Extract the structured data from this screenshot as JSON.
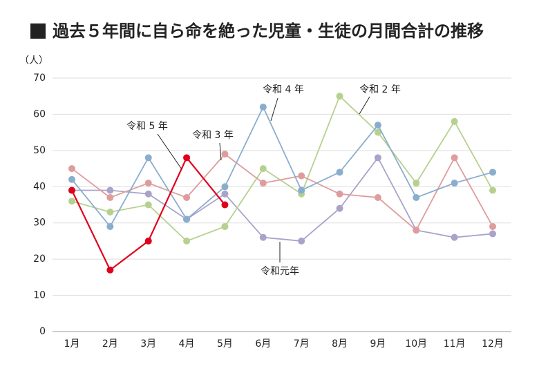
{
  "chart_data": {
    "type": "line",
    "title": "過去５年間に自ら命を絶った児童・生徒の月間合計の推移",
    "y_label": "（人）",
    "categories": [
      "1月",
      "2月",
      "3月",
      "4月",
      "5月",
      "6月",
      "7月",
      "8月",
      "9月",
      "10月",
      "11月",
      "12月"
    ],
    "series": [
      {
        "name": "令和元年",
        "color": "#aaa3c9",
        "values": [
          39,
          39,
          38,
          31,
          38,
          26,
          25,
          34,
          48,
          28,
          26,
          27
        ]
      },
      {
        "name": "令和 2 年",
        "color": "#b6d18f",
        "values": [
          36,
          33,
          35,
          25,
          29,
          45,
          38,
          65,
          55,
          41,
          58,
          39
        ]
      },
      {
        "name": "令和 3 年",
        "color": "#df9c9c",
        "values": [
          45,
          37,
          41,
          37,
          49,
          41,
          43,
          38,
          37,
          28,
          48,
          29
        ]
      },
      {
        "name": "令和 4 年",
        "color": "#8badcd",
        "values": [
          42,
          29,
          48,
          31,
          40,
          62,
          39,
          44,
          57,
          37,
          41,
          44
        ]
      },
      {
        "name": "令和 5 年",
        "color": "#e0001b",
        "values": [
          39,
          17,
          25,
          48,
          35,
          null,
          null,
          null,
          null,
          null,
          null,
          null
        ]
      }
    ],
    "ylim": [
      0,
      70
    ],
    "yticks": [
      0,
      10,
      20,
      30,
      40,
      50,
      60,
      70
    ],
    "grid": true
  }
}
